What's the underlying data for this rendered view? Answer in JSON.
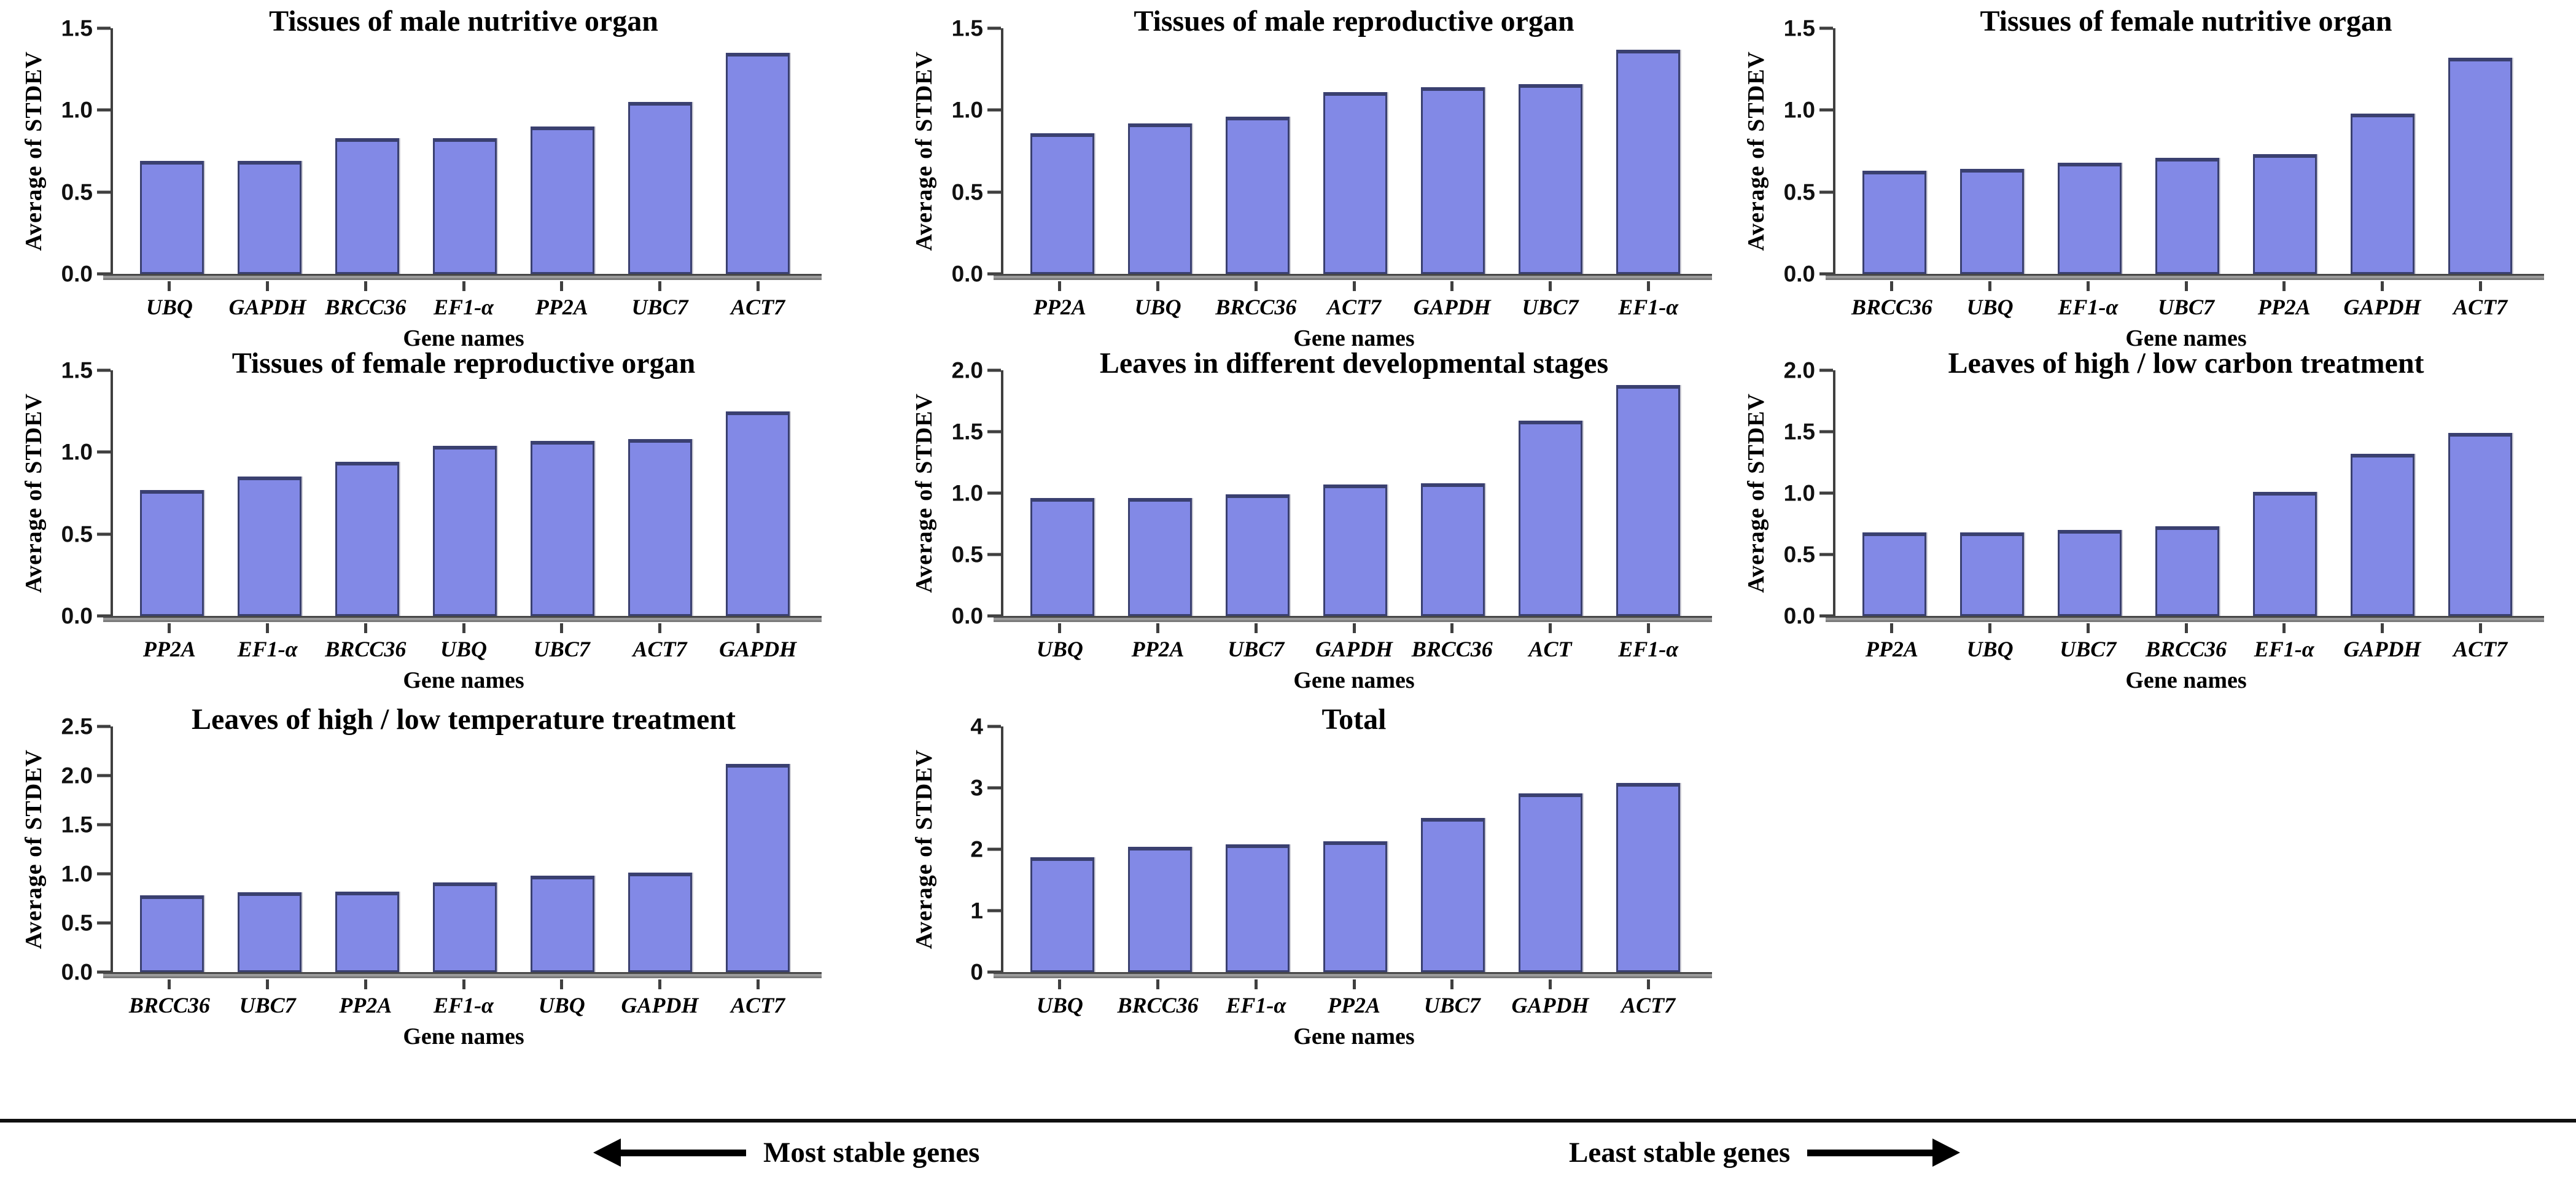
{
  "figure": {
    "background": "#ffffff",
    "bar_fill": "#8289e6",
    "bar_border": "#3a4070",
    "axis_color": "#3f3f3f",
    "baseline_color": "#9a9a9a",
    "text_color": "#000000"
  },
  "footer": {
    "most_stable_label": "Most stable genes",
    "least_stable_label": "Least stable genes",
    "left_arrow_icon": "arrow-left",
    "right_arrow_icon": "arrow-right"
  },
  "chart_data": [
    {
      "type": "bar",
      "title": "Tissues of male nutritive organ",
      "xlabel": "Gene names",
      "ylabel": "Average of STDEV",
      "ylim": [
        0,
        1.5
      ],
      "yticks": [
        "0.0",
        "0.5",
        "1.0",
        "1.5"
      ],
      "grid": false,
      "legend": null,
      "categories": [
        "UBQ",
        "GAPDH",
        "BRCC36",
        "EF1-α",
        "PP2A",
        "UBC7",
        "ACT7"
      ],
      "values": [
        0.69,
        0.69,
        0.83,
        0.83,
        0.9,
        1.05,
        1.35
      ]
    },
    {
      "type": "bar",
      "title": "Tissues of male reproductive organ",
      "xlabel": "Gene names",
      "ylabel": "Average of STDEV",
      "ylim": [
        0,
        1.5
      ],
      "yticks": [
        "0.0",
        "0.5",
        "1.0",
        "1.5"
      ],
      "grid": false,
      "legend": null,
      "categories": [
        "PP2A",
        "UBQ",
        "BRCC36",
        "ACT7",
        "GAPDH",
        "UBC7",
        "EF1-α"
      ],
      "values": [
        0.86,
        0.92,
        0.96,
        1.11,
        1.14,
        1.16,
        1.37
      ]
    },
    {
      "type": "bar",
      "title": "Tissues of female nutritive organ",
      "xlabel": "Gene names",
      "ylabel": "Average of STDEV",
      "ylim": [
        0,
        1.5
      ],
      "yticks": [
        "0.0",
        "0.5",
        "1.0",
        "1.5"
      ],
      "grid": false,
      "legend": null,
      "categories": [
        "BRCC36",
        "UBQ",
        "EF1-α",
        "UBC7",
        "PP2A",
        "GAPDH",
        "ACT7"
      ],
      "values": [
        0.63,
        0.64,
        0.68,
        0.71,
        0.73,
        0.98,
        1.32
      ]
    },
    {
      "type": "bar",
      "title": "Tissues of female reproductive organ",
      "xlabel": "Gene names",
      "ylabel": "Average of STDEV",
      "ylim": [
        0,
        1.5
      ],
      "yticks": [
        "0.0",
        "0.5",
        "1.0",
        "1.5"
      ],
      "grid": false,
      "legend": null,
      "categories": [
        "PP2A",
        "EF1-α",
        "BRCC36",
        "UBQ",
        "UBC7",
        "ACT7",
        "GAPDH"
      ],
      "values": [
        0.77,
        0.85,
        0.94,
        1.04,
        1.07,
        1.08,
        1.25
      ]
    },
    {
      "type": "bar",
      "title": "Leaves in different developmental stages",
      "xlabel": "Gene names",
      "ylabel": "Average of STDEV",
      "ylim": [
        0,
        2.0
      ],
      "yticks": [
        "0.0",
        "0.5",
        "1.0",
        "1.5",
        "2.0"
      ],
      "grid": false,
      "legend": null,
      "categories": [
        "UBQ",
        "PP2A",
        "UBC7",
        "GAPDH",
        "BRCC36",
        "ACT",
        "EF1-α"
      ],
      "values": [
        0.96,
        0.96,
        0.99,
        1.07,
        1.08,
        1.59,
        1.88
      ]
    },
    {
      "type": "bar",
      "title": "Leaves of high / low carbon treatment",
      "xlabel": "Gene names",
      "ylabel": "Average of STDEV",
      "ylim": [
        0,
        2.0
      ],
      "yticks": [
        "0.0",
        "0.5",
        "1.0",
        "1.5",
        "2.0"
      ],
      "grid": false,
      "legend": null,
      "categories": [
        "PP2A",
        "UBQ",
        "UBC7",
        "BRCC36",
        "EF1-α",
        "GAPDH",
        "ACT7"
      ],
      "values": [
        0.68,
        0.68,
        0.7,
        0.73,
        1.01,
        1.32,
        1.49
      ]
    },
    {
      "type": "bar",
      "title": "Leaves of high / low temperature treatment",
      "xlabel": "Gene names",
      "ylabel": "Average of STDEV",
      "ylim": [
        0,
        2.5
      ],
      "yticks": [
        "0.0",
        "0.5",
        "1.0",
        "1.5",
        "2.0",
        "2.5"
      ],
      "grid": false,
      "legend": null,
      "categories": [
        "BRCC36",
        "UBC7",
        "PP2A",
        "EF1-α",
        "UBQ",
        "GAPDH",
        "ACT7"
      ],
      "values": [
        0.78,
        0.81,
        0.82,
        0.91,
        0.98,
        1.01,
        2.12
      ]
    },
    {
      "type": "bar",
      "title": "Total",
      "xlabel": "Gene names",
      "ylabel": "Average of STDEV",
      "ylim": [
        0,
        4
      ],
      "yticks": [
        "0",
        "1",
        "2",
        "3",
        "4"
      ],
      "grid": false,
      "legend": null,
      "categories": [
        "UBQ",
        "BRCC36",
        "EF1-α",
        "PP2A",
        "UBC7",
        "GAPDH",
        "ACT7"
      ],
      "values": [
        1.87,
        2.04,
        2.08,
        2.13,
        2.51,
        2.91,
        3.08
      ]
    }
  ]
}
